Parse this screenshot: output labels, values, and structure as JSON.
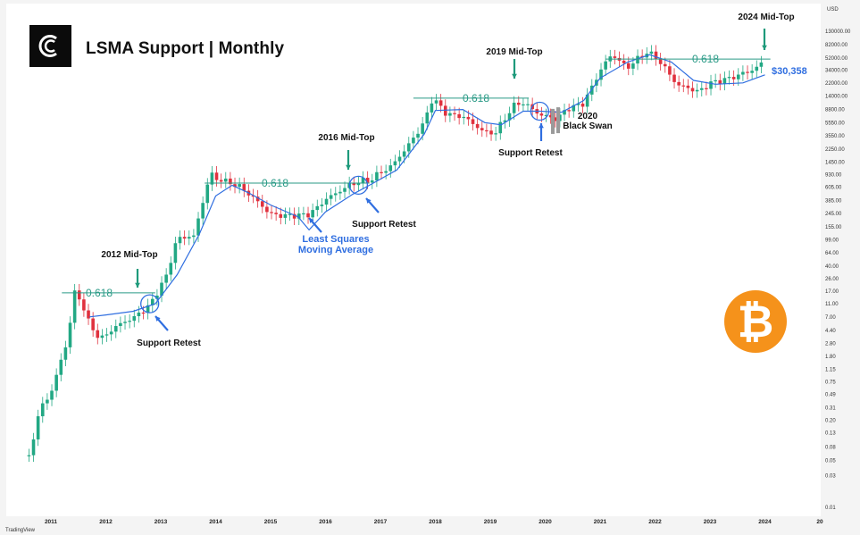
{
  "title": "LSMA Support | Monthly",
  "logo_icon": "cc-logo-icon",
  "bitcoin_icon": "bitcoin-logo-icon",
  "bitcoin_symbol": "₿",
  "watermark_text": "TradingView",
  "colors": {
    "up": "#22a884",
    "down": "#e0313e",
    "lsma": "#2f6ee0",
    "fib": "#2a9a86",
    "retest_arrow": "#2f6ee0",
    "top_arrow": "#1e9a7b"
  },
  "chart_data": {
    "type": "candlestick",
    "y_scale": "log",
    "currency_label": "USD",
    "y_ticks": [
      "130000.00",
      "82000.00",
      "52000.00",
      "34000.00",
      "22000.00",
      "14000.00",
      "8800.00",
      "5550.00",
      "3550.00",
      "2250.00",
      "1450.00",
      "930.00",
      "605.00",
      "385.00",
      "245.00",
      "155.00",
      "99.00",
      "64.00",
      "40.00",
      "26.00",
      "17.00",
      "11.00",
      "7.00",
      "4.40",
      "2.80",
      "1.80",
      "1.15",
      "0.75",
      "0.49",
      "0.31",
      "0.20",
      "0.13",
      "0.08",
      "0.05",
      "0.03",
      "0.01"
    ],
    "x_ticks": [
      "2011",
      "2012",
      "2013",
      "2014",
      "2015",
      "2016",
      "2017",
      "2018",
      "2019",
      "2020",
      "2021",
      "2022",
      "2023",
      "2024",
      "20"
    ],
    "price_label": "$30,358",
    "fib_label": "0.618",
    "annotations": {
      "mid_top_2012": "2012 Mid-Top",
      "mid_top_2016": "2016 Mid-Top",
      "mid_top_2019": "2019 Mid-Top",
      "mid_top_2024": "2024 Mid-Top",
      "support_retest": "Support Retest",
      "lsma_line1": "Least Squares",
      "lsma_line2": "Moving Average",
      "black_swan_line1": "2020",
      "black_swan_line2": "Black Swan"
    }
  }
}
